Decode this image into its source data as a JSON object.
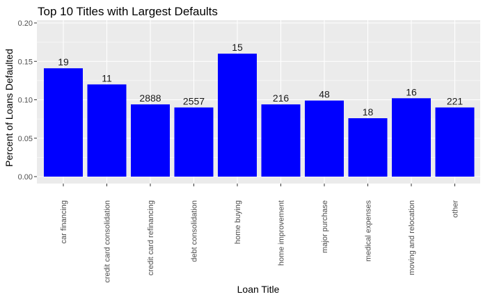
{
  "chart_data": {
    "type": "bar",
    "title": "Top 10 Titles with Largest Defaults",
    "xlabel": "Loan Title",
    "ylabel": "Percent of Loans Defaulted",
    "categories": [
      "car financing",
      "credit card consolidation",
      "credit card refinancing",
      "debt consolidation",
      "home buying",
      "home improvement",
      "major purchase",
      "medical expenses",
      "moving and relocation",
      "other"
    ],
    "values": [
      0.141,
      0.12,
      0.094,
      0.09,
      0.16,
      0.094,
      0.099,
      0.076,
      0.102,
      0.09
    ],
    "data_labels": [
      "19",
      "11",
      "2888",
      "2557",
      "15",
      "216",
      "48",
      "18",
      "16",
      "221"
    ],
    "y_ticks": [
      "0.00",
      "0.05",
      "0.10",
      "0.15",
      "0.20"
    ],
    "ylim": [
      0,
      0.2
    ],
    "grid": true,
    "legend": "none",
    "colors": {
      "bar": "#0000ff",
      "panel": "#ebebeb",
      "grid": "#ffffff"
    }
  }
}
